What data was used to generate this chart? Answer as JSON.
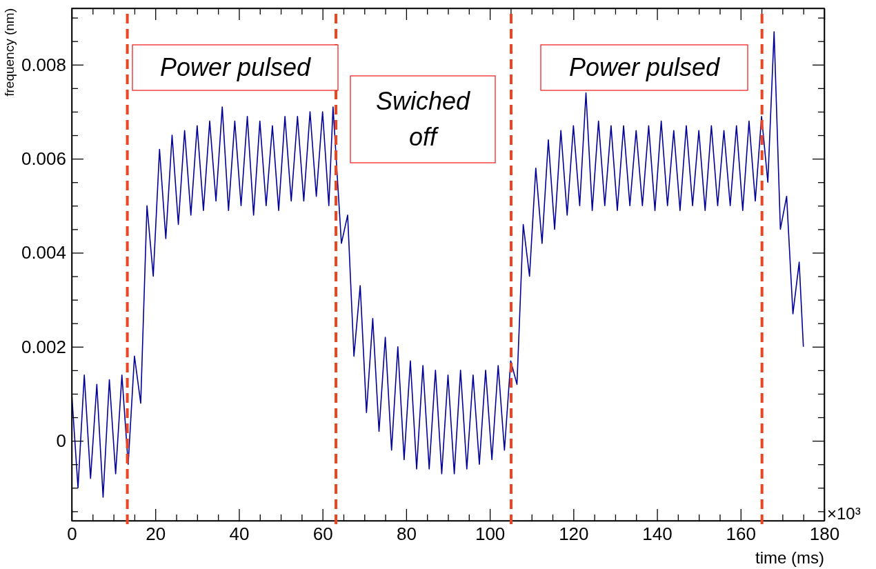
{
  "chart_data": {
    "type": "line",
    "xlabel": "time (ms)",
    "ylabel": "frequency (nm)",
    "xlim": [
      0,
      180
    ],
    "ylim": [
      -0.0017,
      0.0092
    ],
    "xticks": [
      0,
      {
        "value": 5,
        "label": null
      },
      {
        "value": 10,
        "label": null
      },
      {
        "value": 15,
        "label": null
      },
      20,
      {
        "value": 25,
        "label": null
      },
      {
        "value": 30,
        "label": null
      },
      {
        "value": 35,
        "label": null
      },
      40,
      {
        "value": 45,
        "label": null
      },
      {
        "value": 50,
        "label": null
      },
      {
        "value": 55,
        "label": null
      },
      60,
      {
        "value": 65,
        "label": null
      },
      {
        "value": 70,
        "label": null
      },
      {
        "value": 75,
        "label": null
      },
      80,
      {
        "value": 85,
        "label": null
      },
      {
        "value": 90,
        "label": null
      },
      {
        "value": 95,
        "label": null
      },
      100,
      {
        "value": 105,
        "label": null
      },
      {
        "value": 110,
        "label": null
      },
      {
        "value": 115,
        "label": null
      },
      120,
      {
        "value": 125,
        "label": null
      },
      {
        "value": 130,
        "label": null
      },
      {
        "value": 135,
        "label": null
      },
      140,
      {
        "value": 145,
        "label": null
      },
      {
        "value": 150,
        "label": null
      },
      {
        "value": 155,
        "label": null
      },
      160,
      {
        "value": 165,
        "label": null
      },
      {
        "value": 170,
        "label": null
      },
      {
        "value": 175,
        "label": null
      },
      180
    ],
    "yticks": [
      {
        "value": -0.0015,
        "label": null
      },
      {
        "value": -0.001,
        "label": null
      },
      {
        "value": -0.0005,
        "label": null
      },
      0,
      {
        "value": 0.0005,
        "label": null
      },
      {
        "value": 0.001,
        "label": null
      },
      {
        "value": 0.0015,
        "label": null
      },
      0.002,
      {
        "value": 0.0025,
        "label": null
      },
      {
        "value": 0.003,
        "label": null
      },
      {
        "value": 0.0035,
        "label": null
      },
      0.004,
      {
        "value": 0.0045,
        "label": null
      },
      {
        "value": 0.005,
        "label": null
      },
      {
        "value": 0.0055,
        "label": null
      },
      0.006,
      {
        "value": 0.0065,
        "label": null
      },
      {
        "value": 0.007,
        "label": null
      },
      {
        "value": 0.0075,
        "label": null
      },
      0.008,
      {
        "value": 0.0085,
        "label": null
      },
      {
        "value": 0.009,
        "label": null
      }
    ],
    "series": [
      {
        "color": "#000099",
        "x": [
          0,
          1.5,
          3,
          4.5,
          6,
          7.5,
          9,
          10.5,
          12,
          13.5,
          15,
          16.5,
          18,
          19.5,
          21,
          22.5,
          24,
          25.5,
          27,
          28.5,
          30,
          31.5,
          33,
          34.5,
          36,
          37.5,
          39,
          40.5,
          42,
          43.5,
          45,
          46.5,
          48,
          49.5,
          51,
          52.5,
          54,
          55.5,
          57,
          58.5,
          60,
          61.5,
          62.5,
          64.5,
          66,
          67.5,
          69,
          70.5,
          72,
          73.5,
          75,
          76.5,
          78,
          79.5,
          81,
          82.5,
          84,
          85.5,
          87,
          88.5,
          90,
          91.5,
          93,
          94.5,
          96,
          97.5,
          99,
          100.5,
          102,
          103.5,
          105,
          106.5,
          108,
          109.5,
          111,
          112.5,
          114,
          115.5,
          117,
          118.5,
          120,
          121.5,
          123,
          124.5,
          126,
          127.5,
          129,
          130.5,
          132,
          133.5,
          135,
          136.5,
          138,
          139.5,
          141,
          142.5,
          144,
          145.5,
          147,
          148.5,
          150,
          151.5,
          153,
          154.5,
          156,
          157.5,
          159,
          160.5,
          162,
          163.5,
          165,
          166.5,
          168,
          169.5,
          171,
          172.5,
          174,
          175
        ],
        "values": [
          0.001,
          -0.001,
          0.0014,
          -0.0008,
          0.0012,
          -0.0012,
          0.0013,
          -0.0007,
          0.0014,
          -0.0005,
          0.0018,
          0.0008,
          0.005,
          0.0035,
          0.0062,
          0.0043,
          0.0065,
          0.0046,
          0.0066,
          0.0048,
          0.0067,
          0.0049,
          0.0068,
          0.0051,
          0.0071,
          0.0049,
          0.0068,
          0.005,
          0.0069,
          0.0048,
          0.0068,
          0.005,
          0.0067,
          0.0049,
          0.0069,
          0.0051,
          0.0069,
          0.0051,
          0.007,
          0.0052,
          0.007,
          0.005,
          0.0071,
          0.0042,
          0.0048,
          0.0018,
          0.0033,
          0.0006,
          0.0026,
          0.0002,
          0.0022,
          -0.0002,
          0.002,
          -0.0004,
          0.0017,
          -0.0006,
          0.0016,
          -0.0006,
          0.0015,
          -0.0007,
          0.0014,
          -0.0007,
          0.0015,
          -0.0006,
          0.0014,
          -0.0005,
          0.0015,
          -0.0004,
          0.0016,
          -0.0002,
          0.0017,
          0.0012,
          0.0046,
          0.0035,
          0.0058,
          0.0042,
          0.0064,
          0.0045,
          0.0066,
          0.0048,
          0.0067,
          0.005,
          0.0074,
          0.0049,
          0.0068,
          0.005,
          0.0067,
          0.0049,
          0.0067,
          0.005,
          0.0066,
          0.005,
          0.0067,
          0.0049,
          0.0068,
          0.005,
          0.0066,
          0.0049,
          0.0067,
          0.005,
          0.0066,
          0.0049,
          0.0067,
          0.005,
          0.0066,
          0.005,
          0.0067,
          0.0049,
          0.0068,
          0.0051,
          0.0069,
          0.0055,
          0.0087,
          0.0045,
          0.0052,
          0.0027,
          0.0038,
          0.002
        ]
      }
    ],
    "ref_lines": [
      {
        "axis": "x",
        "value": 13.3,
        "color": "#ee4422",
        "line_style": "dashed"
      },
      {
        "axis": "x",
        "value": 63.2,
        "color": "#ee4422",
        "line_style": "dashed"
      },
      {
        "axis": "x",
        "value": 105.1,
        "color": "#ee4422",
        "line_style": "dashed"
      },
      {
        "axis": "x",
        "value": 165.1,
        "color": "#ee4422",
        "line_style": "dashed"
      }
    ],
    "annotations": [
      "Power pulsed",
      "Swiched\noff",
      "Power pulsed",
      "×10³"
    ],
    "line_style": "solid",
    "marker": "none"
  }
}
